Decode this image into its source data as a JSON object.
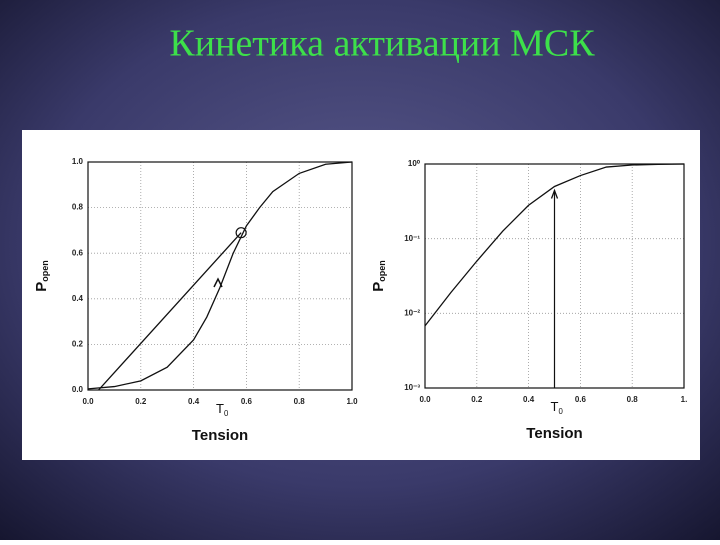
{
  "title": "Кинетика активации МСК",
  "chart_data": [
    {
      "type": "line",
      "xlabel": "Tension",
      "ylabel": "P",
      "ylabel_sub": "open",
      "grid": true,
      "log_y": false,
      "xlim": [
        0,
        1
      ],
      "ylim": [
        0,
        1
      ],
      "xticks": [
        {
          "value": 0,
          "label": "0.0"
        },
        0.2,
        0.4,
        0.6,
        0.8,
        {
          "value": 1,
          "label": "1.0"
        }
      ],
      "yticks": [
        {
          "value": 0,
          "label": "0.0"
        },
        0.2,
        0.4,
        0.6,
        0.8,
        {
          "value": 1,
          "label": "1.0"
        }
      ],
      "series": [
        {
          "color": "#111111",
          "x": [
            0,
            0.1,
            0.2,
            0.3,
            0.4,
            0.45,
            0.5,
            0.55,
            0.6,
            0.65,
            0.7,
            0.8,
            0.9,
            1.0
          ],
          "values": [
            0.005,
            0.015,
            0.04,
            0.1,
            0.22,
            0.32,
            0.45,
            0.6,
            0.72,
            0.8,
            0.87,
            0.95,
            0.99,
            1.0
          ]
        },
        {
          "color": "#111111",
          "x": [
            0.04,
            0.58
          ],
          "values": [
            0,
            0.69
          ]
        }
      ],
      "marker": {
        "x": 0.58,
        "y": 0.69
      },
      "annotation": {
        "text": "T",
        "sub": "0",
        "x": 0.5
      }
    },
    {
      "type": "line",
      "xlabel": "Tension",
      "ylabel": "P",
      "ylabel_sub": "open",
      "grid": true,
      "log_y": true,
      "xlim": [
        0,
        1
      ],
      "ylim": [
        0.001,
        1
      ],
      "xticks": [
        {
          "value": 0,
          "label": "0.0"
        },
        0.2,
        0.4,
        0.6,
        0.8,
        {
          "value": 1,
          "label": "1."
        }
      ],
      "yticks": [
        {
          "value": 0.001,
          "label": "10⁻³"
        },
        {
          "value": 0.01,
          "label": "10⁻²"
        },
        {
          "value": 0.1,
          "label": "10⁻¹"
        },
        {
          "value": 1,
          "label": "10⁰"
        }
      ],
      "series": [
        {
          "color": "#111111",
          "x": [
            0,
            0.1,
            0.2,
            0.3,
            0.4,
            0.5,
            0.6,
            0.7,
            0.8,
            0.9,
            1.0
          ],
          "values": [
            0.0068,
            0.019,
            0.05,
            0.126,
            0.28,
            0.5,
            0.7,
            0.91,
            0.97,
            0.99,
            1.0
          ]
        }
      ],
      "vline": true,
      "annotation": {
        "text": "T",
        "sub": "0",
        "x": 0.5
      }
    }
  ]
}
